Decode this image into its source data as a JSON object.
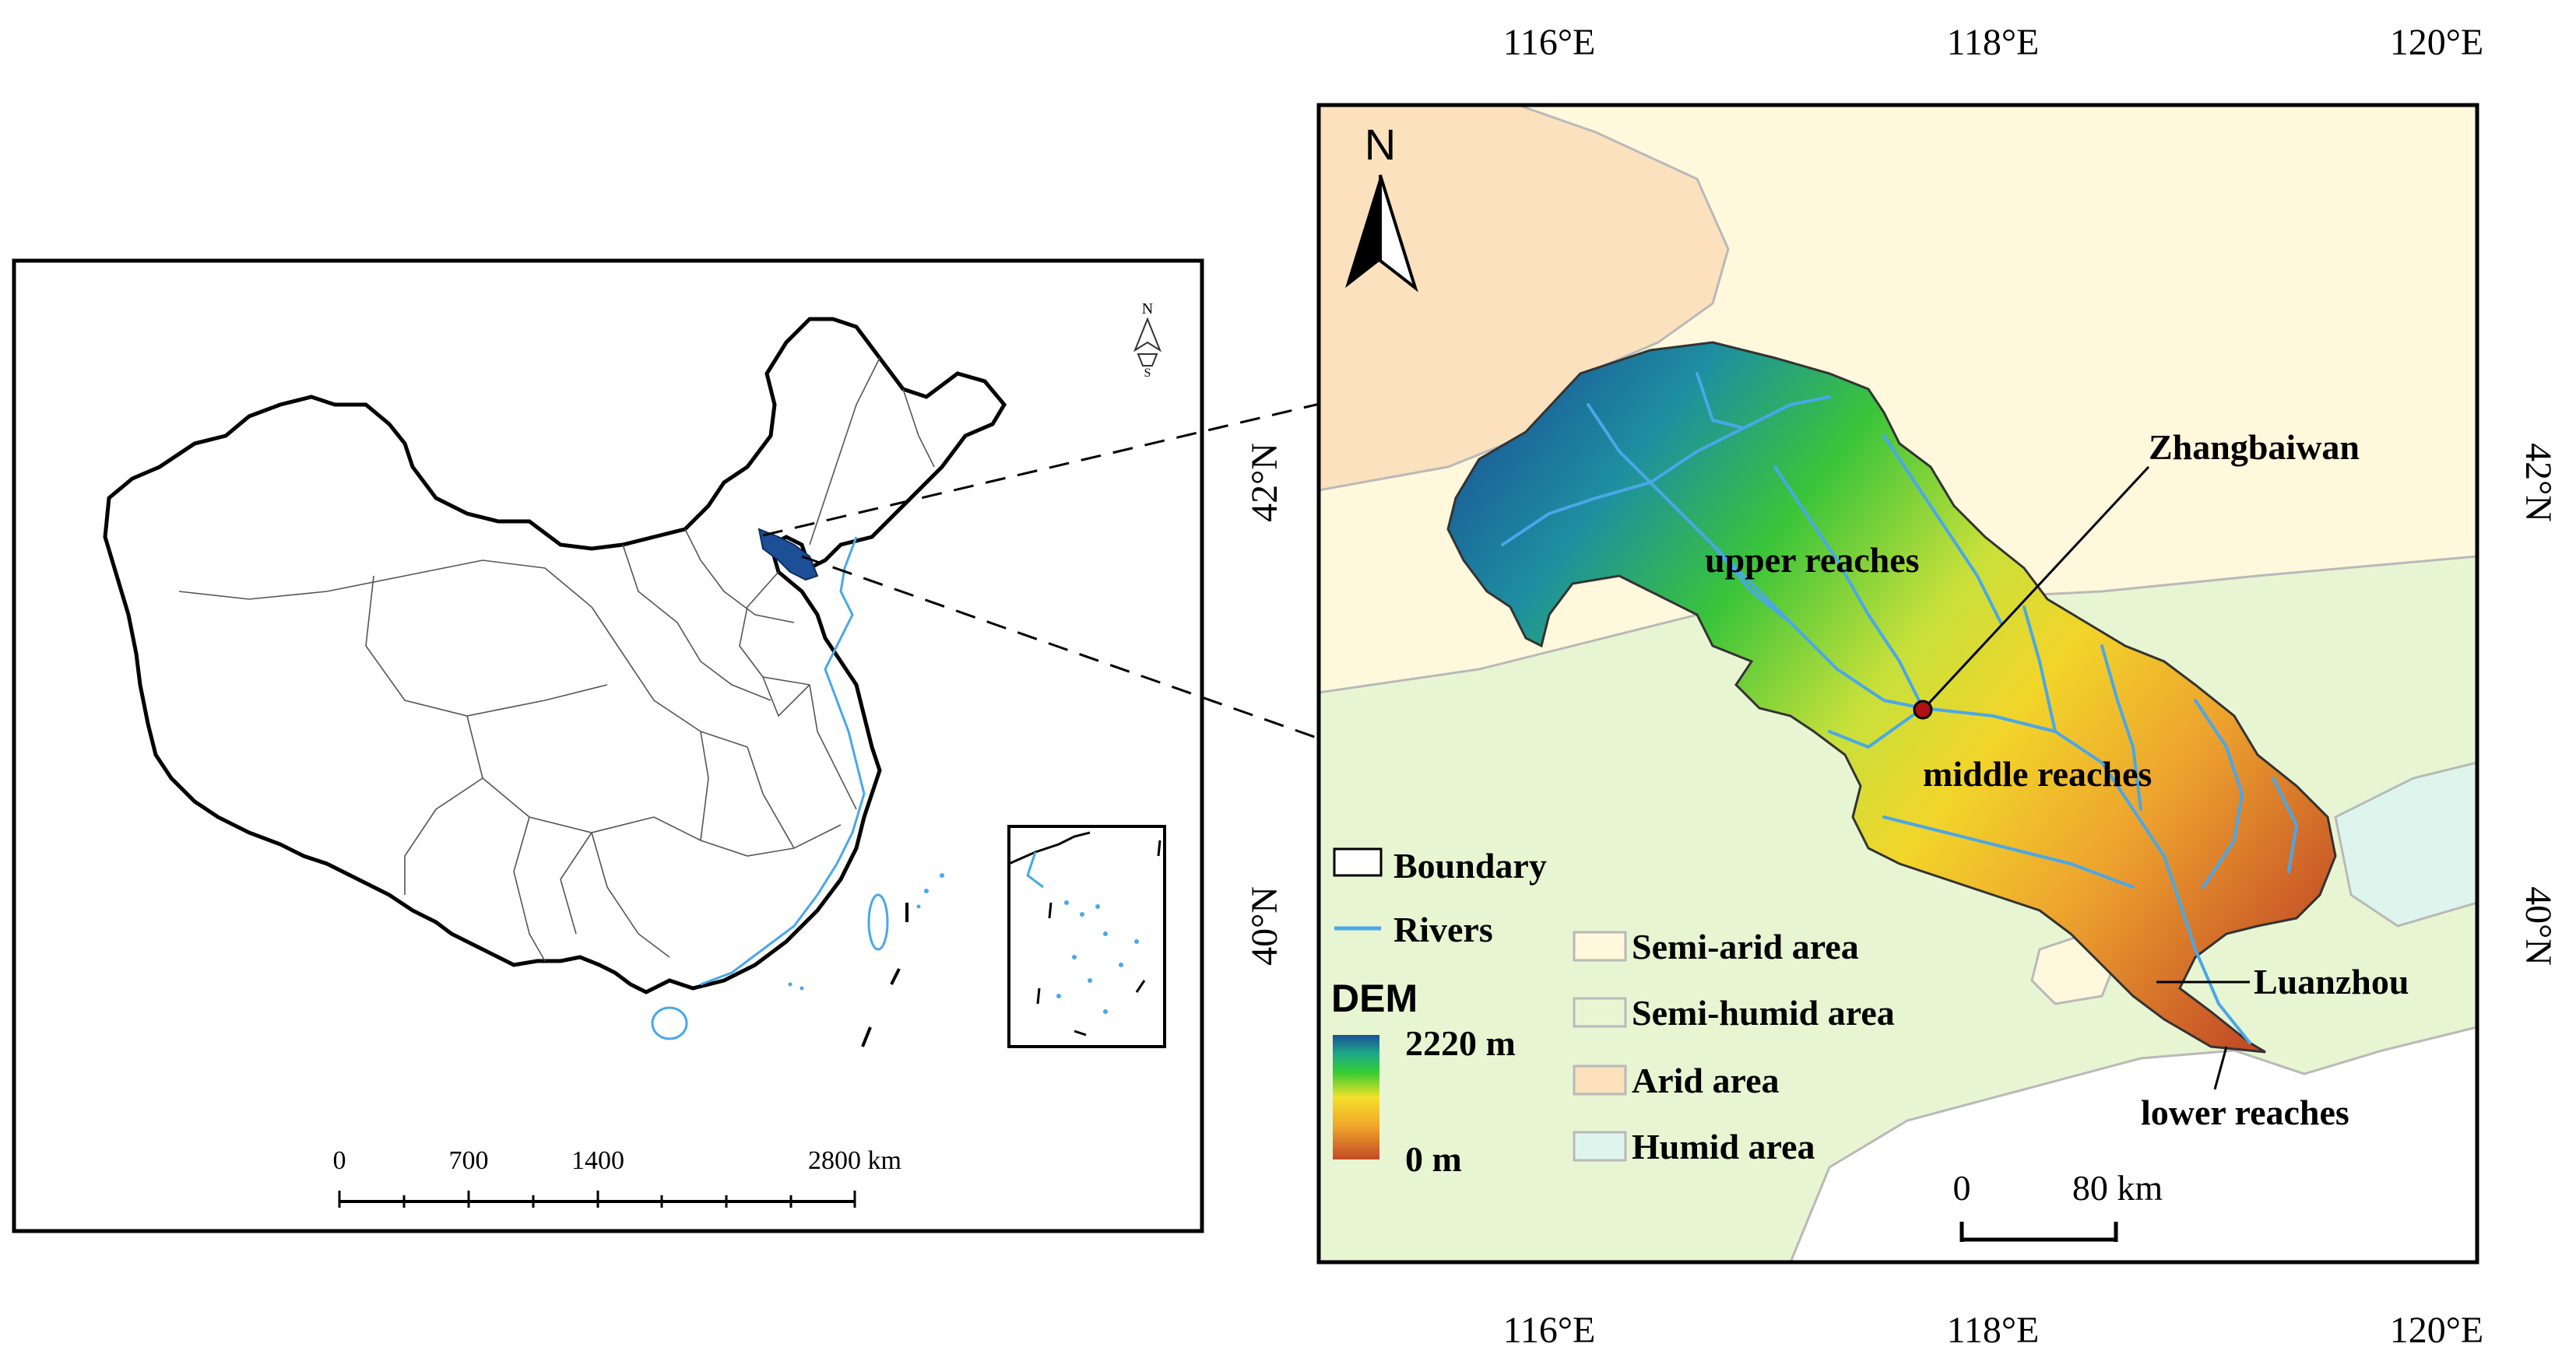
{
  "overview_map": {
    "scale_labels": [
      "0",
      "700",
      "1400",
      "2800 km"
    ],
    "north_label": "N"
  },
  "main_map": {
    "top_longitudes": [
      "116°E",
      "118°E",
      "120°E"
    ],
    "bottom_longitudes": [
      "116°E",
      "118°E",
      "120°E"
    ],
    "left_latitudes": [
      "42°N",
      "40°N"
    ],
    "right_latitudes": [
      "42°N",
      "40°N"
    ],
    "north_label": "N",
    "annotations": {
      "station_1": "Zhangbaiwan",
      "station_2": "Luanzhou",
      "upper": "upper reaches",
      "middle": "middle reaches",
      "lower": "lower reaches"
    },
    "legend": {
      "boundary": "Boundary",
      "rivers": "Rivers",
      "dem_title": "DEM",
      "dem_high": "2220 m",
      "dem_low": "0 m",
      "zones": [
        {
          "label": "Semi-arid area",
          "color": "#fff8dc"
        },
        {
          "label": "Semi-humid area",
          "color": "#e8f5d2"
        },
        {
          "label": "Arid area",
          "color": "#fbe1bd"
        },
        {
          "label": "Humid area",
          "color": "#def5ee"
        }
      ]
    },
    "scale_labels": [
      "0",
      "80 km"
    ]
  },
  "colors": {
    "river": "#4aa7e8",
    "dem_high": "#1a4f96",
    "dem_mid": "#33cc33",
    "dem_yellow": "#f2d52a",
    "dem_low": "#c24a26",
    "highlight": "#1c4f96"
  }
}
